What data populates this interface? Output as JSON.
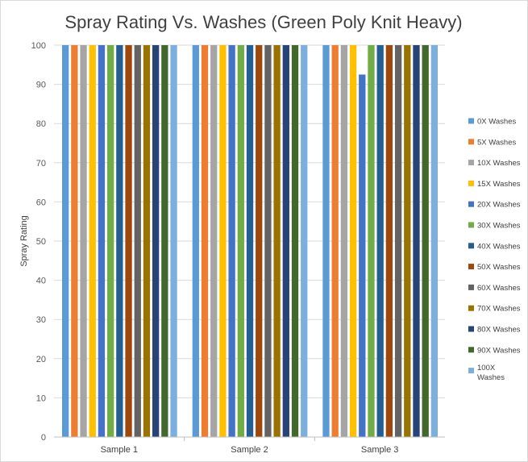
{
  "chart_data": {
    "type": "bar",
    "title": "Spray Rating Vs. Washes (Green Poly Knit Heavy)",
    "xlabel": "",
    "ylabel": "Spray Rating",
    "ylim": [
      0,
      100
    ],
    "yticks": [
      0,
      10,
      20,
      30,
      40,
      50,
      60,
      70,
      80,
      90,
      100
    ],
    "grid": true,
    "legend_position": "right",
    "categories": [
      "Sample 1",
      "Sample 2",
      "Sample 3"
    ],
    "series": [
      {
        "name": "0X Washes",
        "color": "#5B9BD5",
        "values": [
          100,
          100,
          100
        ]
      },
      {
        "name": "5X Washes",
        "color": "#ED7D31",
        "values": [
          100,
          100,
          100
        ]
      },
      {
        "name": "10X Washes",
        "color": "#A5A5A5",
        "values": [
          100,
          100,
          100
        ]
      },
      {
        "name": "15X Washes",
        "color": "#FFC000",
        "values": [
          100,
          100,
          100
        ]
      },
      {
        "name": "20X Washes",
        "color": "#4472C4",
        "values": [
          100,
          100,
          92.5
        ]
      },
      {
        "name": "30X Washes",
        "color": "#70AD47",
        "values": [
          100,
          100,
          100
        ]
      },
      {
        "name": "40X Washes",
        "color": "#255E91",
        "values": [
          100,
          100,
          100
        ]
      },
      {
        "name": "50X Washes",
        "color": "#9E480E",
        "values": [
          100,
          100,
          100
        ]
      },
      {
        "name": "60X Washes",
        "color": "#636363",
        "values": [
          100,
          100,
          100
        ]
      },
      {
        "name": "70X Washes",
        "color": "#997300",
        "values": [
          100,
          100,
          100
        ]
      },
      {
        "name": "80X Washes",
        "color": "#264478",
        "values": [
          100,
          100,
          100
        ]
      },
      {
        "name": "90X Washes",
        "color": "#43682B",
        "values": [
          100,
          100,
          100
        ]
      },
      {
        "name": "100X Washes",
        "color": "#7CAFDD",
        "values": [
          100,
          100,
          100
        ]
      }
    ]
  }
}
